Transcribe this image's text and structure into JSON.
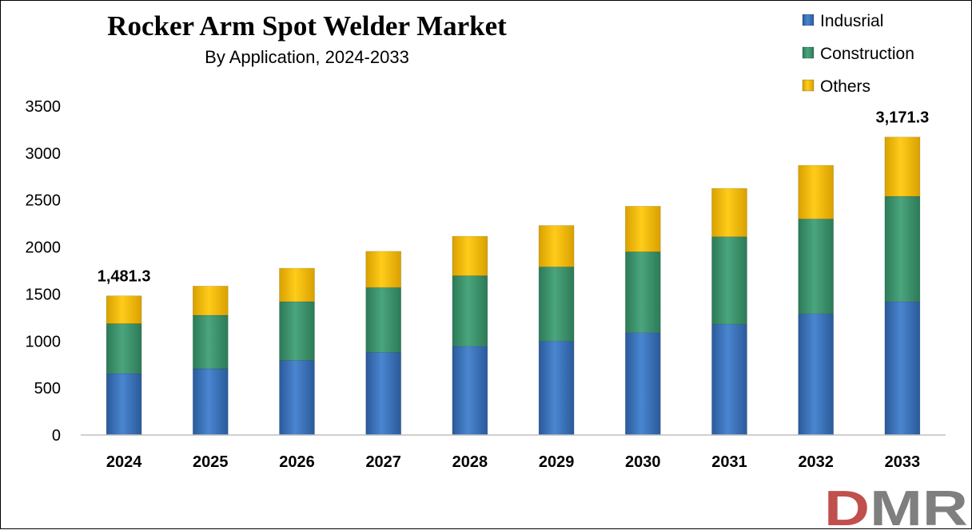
{
  "chart_data": {
    "type": "bar",
    "stacked": true,
    "title": "Rocker Arm Spot Welder Market",
    "subtitle": "By Application, 2024-2033",
    "categories": [
      "2024",
      "2025",
      "2026",
      "2027",
      "2028",
      "2029",
      "2030",
      "2031",
      "2032",
      "2033"
    ],
    "series": [
      {
        "name": "Indusrial",
        "color": "#3a75c4",
        "values": [
          655,
          705,
          795,
          880,
          945,
          1000,
          1090,
          1180,
          1290,
          1420
        ]
      },
      {
        "name": "Construction",
        "color": "#3d9970",
        "values": [
          530,
          570,
          625,
          690,
          750,
          790,
          860,
          930,
          1010,
          1120
        ]
      },
      {
        "name": "Others",
        "color": "#ffc000",
        "values": [
          296.3,
          310,
          355,
          385,
          420,
          440,
          485,
          515,
          570,
          631.3
        ]
      }
    ],
    "ylim": [
      0,
      3500
    ],
    "yticks": [
      "0",
      "500",
      "1000",
      "1500",
      "2000",
      "2500",
      "3000",
      "3500"
    ],
    "ytick_values": [
      0,
      500,
      1000,
      1500,
      2000,
      2500,
      3000,
      3500
    ],
    "annotations": [
      {
        "category": "2024",
        "text": "1,481.3"
      },
      {
        "category": "2033",
        "text": "3,171.3"
      }
    ],
    "grid": false,
    "legend_position": "top-right"
  },
  "logo": {
    "letters": [
      "D",
      "M",
      "R"
    ],
    "colors": {
      "d": "#c0504d",
      "m": "#7f7f7f",
      "r": "#7f7f7f"
    }
  }
}
